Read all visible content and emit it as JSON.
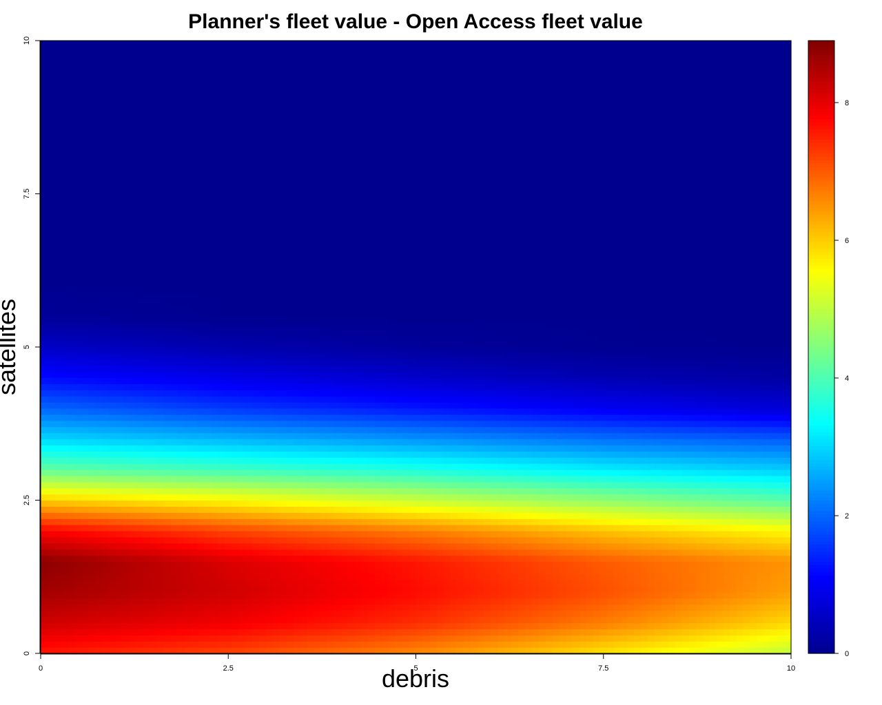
{
  "chart_data": {
    "type": "heatmap",
    "title": "Planner's fleet value - Open Access fleet value",
    "xlabel": "debris",
    "ylabel": "satellites",
    "xlim": [
      0,
      10
    ],
    "ylim": [
      0,
      10
    ],
    "x_ticks": [
      0,
      2.5,
      5,
      7.5,
      10
    ],
    "y_ticks": [
      0,
      2.5,
      5,
      7.5,
      10
    ],
    "x_tick_labels": [
      "0",
      "2.5",
      "5",
      "7.5",
      "10"
    ],
    "y_tick_labels": [
      "0",
      "2.5",
      "5",
      "7.5",
      "10"
    ],
    "colorbar": {
      "range": [
        0,
        8.9
      ],
      "ticks": [
        0,
        2,
        4,
        6,
        8
      ],
      "tick_labels": [
        "0",
        "2",
        "4",
        "6",
        "8"
      ],
      "colormap": [
        "#00008f",
        "#0000ff",
        "#0080ff",
        "#00ffff",
        "#80ff80",
        "#ffff00",
        "#ff8000",
        "#ff0000",
        "#800000"
      ]
    },
    "x": [
      0,
      2.5,
      5,
      7.5,
      10
    ],
    "y": [
      0,
      0.5,
      1,
      1.5,
      2,
      2.5,
      3,
      3.5,
      4,
      4.5,
      5,
      5.5,
      6,
      7.5,
      10
    ],
    "z": [
      [
        7.6,
        7.2,
        6.6,
        5.8,
        5.0
      ],
      [
        8.2,
        7.9,
        7.4,
        6.7,
        5.9
      ],
      [
        8.6,
        8.2,
        7.7,
        7.1,
        6.4
      ],
      [
        8.8,
        8.1,
        7.6,
        7.0,
        6.5
      ],
      [
        7.8,
        7.2,
        6.7,
        6.1,
        5.6
      ],
      [
        6.0,
        5.6,
        5.1,
        4.6,
        4.1
      ],
      [
        4.2,
        3.9,
        3.6,
        3.2,
        2.9
      ],
      [
        3.0,
        2.7,
        2.4,
        2.1,
        1.9
      ],
      [
        2.0,
        1.6,
        1.3,
        1.0,
        0.7
      ],
      [
        1.2,
        0.9,
        0.6,
        0.35,
        0.2
      ],
      [
        0.55,
        0.3,
        0.12,
        0.02,
        0.0
      ],
      [
        0.1,
        0.0,
        0.0,
        0.0,
        0.0
      ],
      [
        0.0,
        0.0,
        0.0,
        0.0,
        0.0
      ],
      [
        0.0,
        0.0,
        0.0,
        0.0,
        0.0
      ],
      [
        0.0,
        0.0,
        0.0,
        0.0,
        0.0
      ]
    ]
  }
}
